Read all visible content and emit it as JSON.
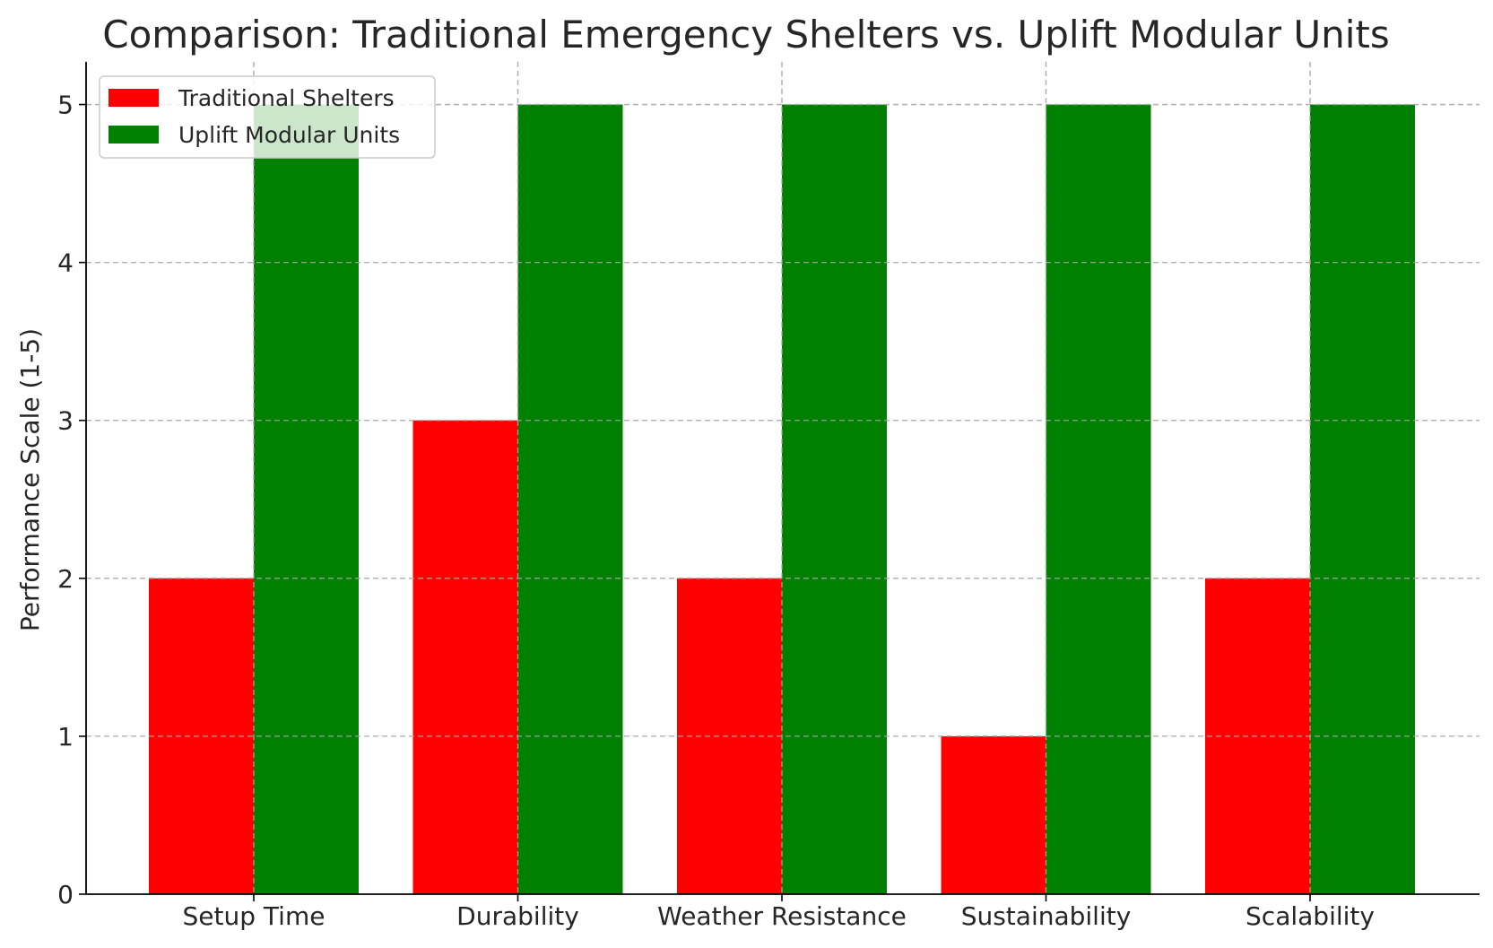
{
  "chart_data": {
    "type": "bar",
    "title": "Comparison: Traditional Emergency Shelters vs. Uplift Modular Units",
    "xlabel": "",
    "ylabel": "Performance Scale (1-5)",
    "categories": [
      "Setup Time",
      "Durability",
      "Weather Resistance",
      "Sustainability",
      "Scalability"
    ],
    "series": [
      {
        "name": "Traditional Shelters",
        "color": "#ff0000",
        "values": [
          2,
          3,
          2,
          1,
          2
        ]
      },
      {
        "name": "Uplift Modular Units",
        "color": "#008000",
        "values": [
          5,
          5,
          5,
          5,
          5
        ]
      }
    ],
    "ylim": [
      0,
      5.27
    ],
    "yticks": [
      "0",
      "1",
      "2",
      "3",
      "4",
      "5"
    ],
    "grid": true,
    "legend_position": "top-left"
  }
}
